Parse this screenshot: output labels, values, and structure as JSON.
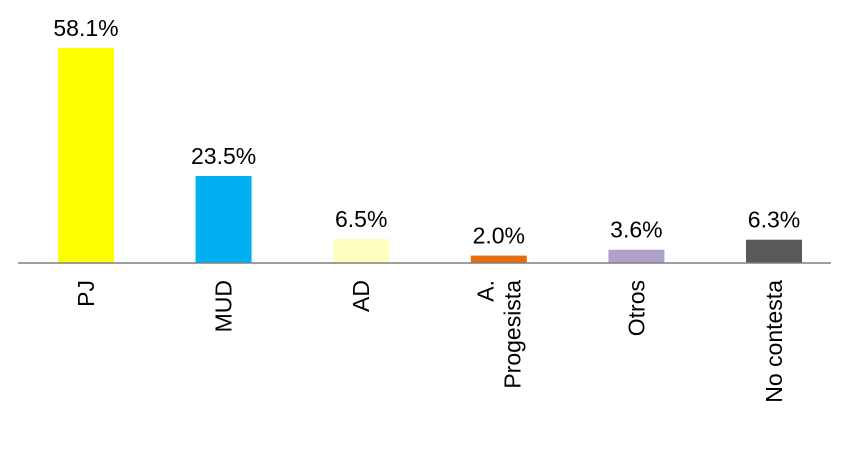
{
  "chart_data": {
    "type": "bar",
    "categories": [
      [
        "PJ"
      ],
      [
        "MUD"
      ],
      [
        "AD"
      ],
      [
        "A.",
        "Progesista"
      ],
      [
        "Otros"
      ],
      [
        "No contesta"
      ]
    ],
    "values": [
      58.1,
      23.5,
      6.5,
      2.0,
      3.6,
      6.3
    ],
    "value_labels": [
      "58.1%",
      "23.5%",
      "6.5%",
      "2.0%",
      "3.6%",
      "6.3%"
    ],
    "colors": [
      "#ffff00",
      "#00b0f0",
      "#ffffc0",
      "#e46c0a",
      "#b1a0c7",
      "#595959"
    ],
    "axis_color": "#7f7f7f",
    "ylim": [
      0,
      58.1
    ],
    "grid": false,
    "legend": "none",
    "title": "",
    "xlabel": "",
    "ylabel": ""
  }
}
